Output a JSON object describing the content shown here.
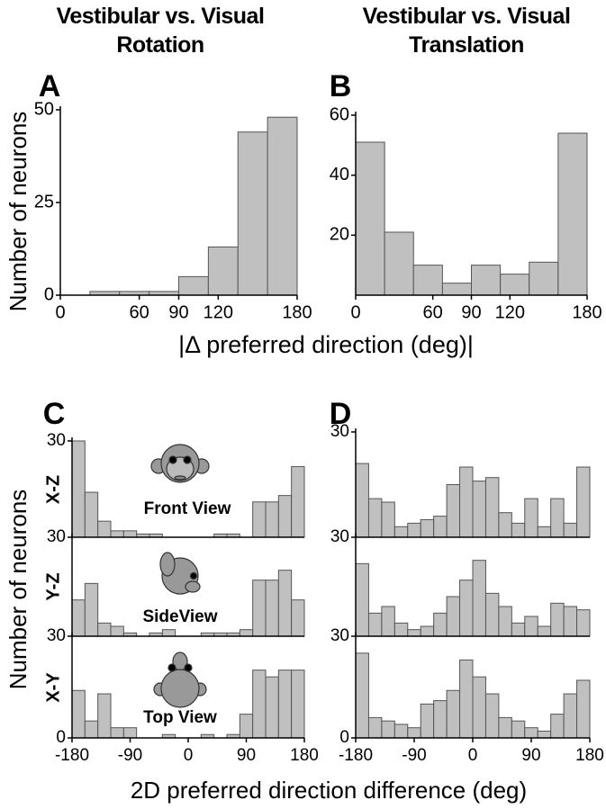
{
  "figure": {
    "column_titles": [
      "Vestibular vs. Visual Rotation",
      "Vestibular vs. Visual Translation"
    ],
    "panel_labels": [
      "A",
      "B",
      "C",
      "D"
    ],
    "ylabel_top": "Number of neurons",
    "xlabel_top": "|Δ preferred direction (deg)|",
    "ylabel_bottom": "Number of neurons",
    "xlabel_bottom": "2D preferred direction difference (deg)",
    "row_labels": [
      "X-Z",
      "Y-Z",
      "X-Y"
    ],
    "view_labels": [
      "Front View",
      "SideView",
      "Top View"
    ]
  },
  "chart_data": [
    {
      "type": "histogram",
      "bins": [
        0,
        22.5,
        45,
        67.5,
        90,
        112.5,
        135,
        157.5,
        180
      ],
      "values": [
        0,
        1,
        1,
        1,
        5,
        13,
        44,
        48
      ],
      "color": "#c0c0c0",
      "xlim": [
        0,
        180
      ],
      "xticks": [
        0,
        60,
        90,
        120,
        180
      ],
      "ylim": [
        0,
        50
      ],
      "yticks": [
        0,
        25,
        50
      ]
    },
    {
      "type": "histogram",
      "bins": [
        0,
        22.5,
        45,
        67.5,
        90,
        112.5,
        135,
        157.5,
        180
      ],
      "values": [
        51,
        21,
        10,
        4,
        10,
        7,
        11,
        54
      ],
      "color": "#c0c0c0",
      "xlim": [
        0,
        180
      ],
      "xticks": [
        0,
        60,
        90,
        120,
        180
      ],
      "ylim": [
        0,
        60
      ],
      "yticks": [
        20,
        40,
        60
      ]
    },
    {
      "type": "histogram",
      "bins": [
        -180,
        -160,
        -140,
        -120,
        -100,
        -80,
        -60,
        -40,
        -20,
        0,
        20,
        40,
        60,
        80,
        100,
        120,
        140,
        160,
        180
      ],
      "values": [
        30,
        14,
        5,
        2,
        2,
        1,
        1,
        0,
        0,
        0,
        0,
        1,
        1,
        0,
        11,
        11,
        13,
        22
      ],
      "color": "#c0c0c0",
      "xlim": [
        -180,
        180
      ],
      "ylim": [
        0,
        30
      ],
      "yticks": [
        30
      ]
    },
    {
      "type": "histogram",
      "bins": [
        -180,
        -160,
        -140,
        -120,
        -100,
        -80,
        -60,
        -40,
        -20,
        0,
        20,
        40,
        60,
        80,
        100,
        120,
        140,
        160,
        180
      ],
      "values": [
        11,
        16,
        4,
        3,
        1,
        0,
        1,
        2,
        0,
        0,
        1,
        1,
        1,
        2,
        17,
        17,
        20,
        11
      ],
      "color": "#c0c0c0",
      "xlim": [
        -180,
        180
      ],
      "ylim": [
        0,
        30
      ],
      "yticks": [
        30
      ]
    },
    {
      "type": "histogram",
      "bins": [
        -180,
        -160,
        -140,
        -120,
        -100,
        -80,
        -60,
        -40,
        -20,
        0,
        20,
        40,
        60,
        80,
        100,
        120,
        140,
        160,
        180
      ],
      "values": [
        14,
        5,
        13,
        3,
        3,
        0,
        0,
        1,
        0,
        0,
        1,
        0,
        1,
        7,
        20,
        18,
        20,
        20
      ],
      "color": "#c0c0c0",
      "xlim": [
        -180,
        180
      ],
      "xticks": [
        -180,
        -90,
        0,
        90,
        180
      ],
      "ylim": [
        0,
        30
      ],
      "yticks": [
        0,
        30
      ]
    },
    {
      "type": "histogram",
      "bins": [
        -180,
        -160,
        -140,
        -120,
        -100,
        -80,
        -60,
        -40,
        -20,
        0,
        20,
        40,
        60,
        80,
        100,
        120,
        140,
        160,
        180
      ],
      "values": [
        21,
        11,
        10,
        3,
        4,
        5,
        6,
        15,
        20,
        16,
        17,
        7,
        4,
        11,
        3,
        11,
        4,
        20
      ],
      "color": "#c0c0c0",
      "xlim": [
        -180,
        180
      ],
      "ylim": [
        0,
        30
      ],
      "yticks": [
        30
      ]
    },
    {
      "type": "histogram",
      "bins": [
        -180,
        -160,
        -140,
        -120,
        -100,
        -80,
        -60,
        -40,
        -20,
        0,
        20,
        40,
        60,
        80,
        100,
        120,
        140,
        160,
        180
      ],
      "values": [
        22,
        7,
        9,
        4,
        2,
        3,
        7,
        12,
        17,
        23,
        13,
        9,
        4,
        6,
        3,
        10,
        9,
        8
      ],
      "color": "#c0c0c0",
      "xlim": [
        -180,
        180
      ],
      "ylim": [
        0,
        30
      ],
      "yticks": [
        30
      ]
    },
    {
      "type": "histogram",
      "bins": [
        -180,
        -160,
        -140,
        -120,
        -100,
        -80,
        -60,
        -40,
        -20,
        0,
        20,
        40,
        60,
        80,
        100,
        120,
        140,
        160,
        180
      ],
      "values": [
        25,
        6,
        5,
        4,
        3,
        10,
        11,
        14,
        23,
        18,
        13,
        6,
        5,
        3,
        2,
        7,
        13,
        17
      ],
      "color": "#c0c0c0",
      "xlim": [
        -180,
        180
      ],
      "xticks": [
        -180,
        -90,
        0,
        90,
        180
      ],
      "ylim": [
        0,
        30
      ],
      "yticks": [
        0,
        30
      ]
    }
  ]
}
